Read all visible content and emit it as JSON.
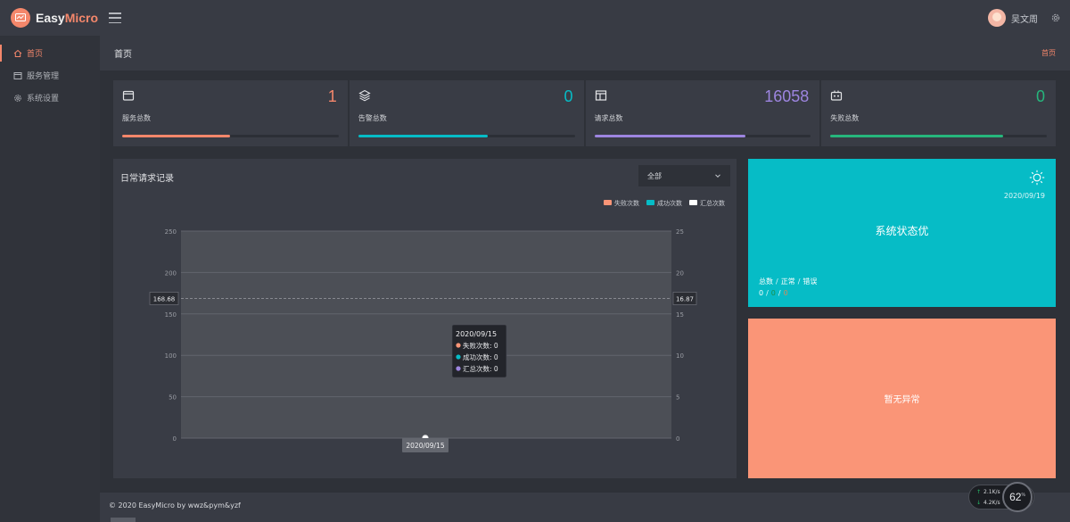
{
  "app": {
    "name_part1": "Easy",
    "name_part2": "Micro",
    "brand_color": "#f4876b",
    "user_name": "吴文周"
  },
  "sidebar": {
    "items": [
      {
        "label": "首页",
        "icon": "home-icon",
        "active": true
      },
      {
        "label": "服务管理",
        "icon": "service-icon",
        "active": false
      },
      {
        "label": "系统设置",
        "icon": "gear-icon",
        "active": false
      }
    ]
  },
  "page": {
    "title": "首页",
    "breadcrumb": "首页"
  },
  "stats": [
    {
      "label": "服务总数",
      "value": "1",
      "color": "#f4876b",
      "progress": 0.5,
      "icon": "window-icon"
    },
    {
      "label": "告警总数",
      "value": "0",
      "color": "#06bcc6",
      "progress": 0.6,
      "icon": "layers-icon"
    },
    {
      "label": "请求总数",
      "value": "16058",
      "color": "#9d85e0",
      "progress": 0.7,
      "icon": "layout-icon"
    },
    {
      "label": "失败总数",
      "value": "0",
      "color": "#26b67c",
      "progress": 0.8,
      "icon": "robot-icon"
    }
  ],
  "chart_panel": {
    "title": "日常请求记录",
    "filter_value": "全部"
  },
  "chart_data": {
    "type": "line",
    "legend": [
      {
        "name": "失败次数",
        "color": "#fa9577"
      },
      {
        "name": "成功次数",
        "color": "#06bcc6"
      },
      {
        "name": "汇总次数",
        "color": "#ffffff"
      }
    ],
    "x": [
      "2020/09/15"
    ],
    "series": [
      {
        "name": "失败次数",
        "values": [
          0
        ]
      },
      {
        "name": "成功次数",
        "values": [
          0
        ]
      },
      {
        "name": "汇总次数",
        "values": [
          0
        ]
      }
    ],
    "y_left": {
      "ticks": [
        "0",
        "50",
        "100",
        "150",
        "200",
        "250"
      ],
      "range": [
        0,
        250
      ]
    },
    "y_right": {
      "ticks": [
        "0",
        "5",
        "10",
        "15",
        "20",
        "25"
      ],
      "range": [
        0,
        25
      ]
    },
    "mark_line": {
      "left_value": "168.68",
      "right_value": "16.87",
      "value": 168.68
    },
    "axis_pointer_label": "2020/09/15",
    "tooltip": {
      "title": "2020/09/15",
      "rows": [
        {
          "label": "失败次数: 0",
          "color": "#fa9577"
        },
        {
          "label": "成功次数: 0",
          "color": "#06bcc6"
        },
        {
          "label": "汇总次数: 0",
          "color": "#9d85e0"
        }
      ]
    }
  },
  "status_panel": {
    "date": "2020/09/19",
    "headline": "系统状态优",
    "labels": [
      "总数",
      "正常",
      "错误"
    ],
    "counts": [
      "0",
      "0",
      "0"
    ]
  },
  "exception_panel": {
    "text": "暂无异常"
  },
  "footer": {
    "copyright": "© 2020 EasyMicro by wwz&pym&yzf"
  },
  "net_widget": {
    "up_rate": "2.1",
    "down_rate": "4.2",
    "unit": "K/s",
    "percent": "62",
    "percent_unit": "%"
  }
}
